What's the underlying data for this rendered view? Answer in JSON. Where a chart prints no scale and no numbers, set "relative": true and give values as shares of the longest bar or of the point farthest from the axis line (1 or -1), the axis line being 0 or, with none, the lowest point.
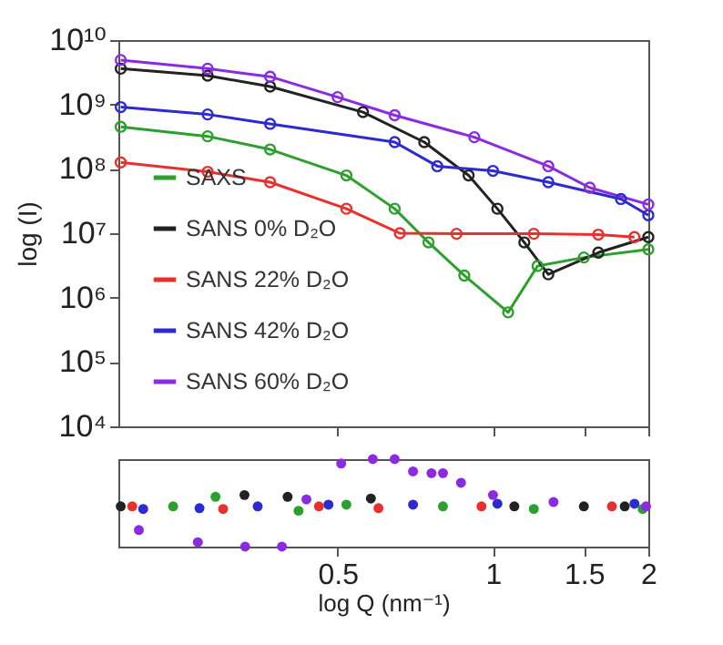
{
  "chart_data": [
    {
      "type": "line",
      "ylabel": "log (I)",
      "log": "xy",
      "marker": "circle",
      "line_style": "solid",
      "legend": "bottom left",
      "tick_labels": "y",
      "xlim": [
        0.188,
        2
      ],
      "xticks": [
        0.5,
        1,
        1.5,
        2
      ],
      "ylim": [
        10000,
        10000000000
      ],
      "yticks": [
        {
          "value": 10000,
          "label": "10⁴"
        },
        {
          "value": 100000,
          "label": "10⁵"
        },
        {
          "value": 1000000,
          "label": "10⁶"
        },
        {
          "value": 10000000,
          "label": "10⁷"
        },
        {
          "value": 100000000,
          "label": "10⁸"
        },
        {
          "value": 1000000000,
          "label": "10⁹"
        },
        {
          "value": 10000000000,
          "label": "10¹⁰"
        }
      ],
      "series": [
        {
          "name": "SAXS",
          "color": "#2ca02c",
          "x": [
            0.19,
            0.28,
            0.37,
            0.52,
            0.645,
            0.75,
            0.88,
            1.07,
            1.22,
            1.5,
            2.0
          ],
          "values": [
            450000000,
            320000000,
            200000000,
            79000000,
            24000000,
            7200000,
            2200000,
            590000,
            3100000,
            4200000,
            5600000
          ]
        },
        {
          "name": "SANS 0% D₂O",
          "color": "#222222",
          "x": [
            0.19,
            0.28,
            0.37,
            0.56,
            0.736,
            0.897,
            1.02,
            1.15,
            1.28,
            1.6,
            2.0
          ],
          "values": [
            3600000000,
            2800000000,
            1900000000,
            760000000,
            260000000,
            79000000,
            24000000,
            7200000,
            2300000,
            5000000,
            8700000
          ]
        },
        {
          "name": "SANS 22% D₂O",
          "color": "#e8312f",
          "x": [
            0.19,
            0.28,
            0.37,
            0.52,
            0.66,
            0.85,
            1.2,
            1.6,
            1.88
          ],
          "values": [
            126000000,
            90000000,
            62000000,
            24000000,
            10000000,
            9800000,
            9800000,
            9500000,
            8700000
          ]
        },
        {
          "name": "SANS 42% D₂O",
          "color": "#2b2bd1",
          "x": [
            0.19,
            0.28,
            0.37,
            0.645,
            0.78,
            1.0,
            1.28,
            1.77,
            2.0
          ],
          "values": [
            910000000,
            700000000,
            500000000,
            260000000,
            110000000,
            93000000,
            62000000,
            34000000,
            19000000
          ]
        },
        {
          "name": "SANS 60% D₂O",
          "color": "#8a2be2",
          "x": [
            0.19,
            0.28,
            0.37,
            0.5,
            0.645,
            0.92,
            1.28,
            1.54,
            2.0
          ],
          "values": [
            4900000000,
            3600000000,
            2700000000,
            1300000000,
            680000000,
            310000000,
            110000000,
            51000000,
            28000000
          ]
        }
      ]
    },
    {
      "type": "scatter",
      "xlabel": "log Q (nm⁻¹)",
      "log": "x",
      "marker": "circle",
      "relative": true,
      "tick_labels": "x",
      "xlim": [
        0.188,
        2
      ],
      "xticks": [
        0.5,
        1,
        1.5,
        2
      ],
      "series": [
        {
          "color": "#2ca02c",
          "x": [
            0.24,
            0.29,
            0.42,
            0.52,
            0.8,
            1.2,
            1.95
          ],
          "values": [
            0.46,
            0.57,
            0.41,
            0.48,
            0.46,
            0.43,
            0.43
          ]
        },
        {
          "color": "#222222",
          "x": [
            0.19,
            0.33,
            0.4,
            0.58,
            1.1,
            1.5,
            1.8
          ],
          "values": [
            0.46,
            0.59,
            0.57,
            0.55,
            0.46,
            0.46,
            0.46
          ]
        },
        {
          "color": "#e8312f",
          "x": [
            0.2,
            0.3,
            0.46,
            0.6,
            0.95,
            1.7
          ],
          "values": [
            0.46,
            0.43,
            0.46,
            0.44,
            0.46,
            0.46
          ]
        },
        {
          "color": "#2b2bd1",
          "x": [
            0.21,
            0.27,
            0.35,
            0.48,
            0.7,
            1.02,
            1.88
          ],
          "values": [
            0.43,
            0.44,
            0.46,
            0.48,
            0.48,
            0.49,
            0.49
          ]
        },
        {
          "color": "#8a2be2",
          "x": [
            0.206,
            0.268,
            0.331,
            0.39,
            0.435,
            0.508,
            0.585,
            0.645,
            0.7,
            0.76,
            0.8,
            0.867,
            1.0,
            1.31,
            1.98
          ],
          "values": [
            0.19,
            0.05,
            0,
            0,
            0.54,
            0.95,
            1,
            1,
            0.86,
            0.84,
            0.84,
            0.73,
            0.59,
            0.51,
            0.46
          ]
        }
      ]
    }
  ]
}
